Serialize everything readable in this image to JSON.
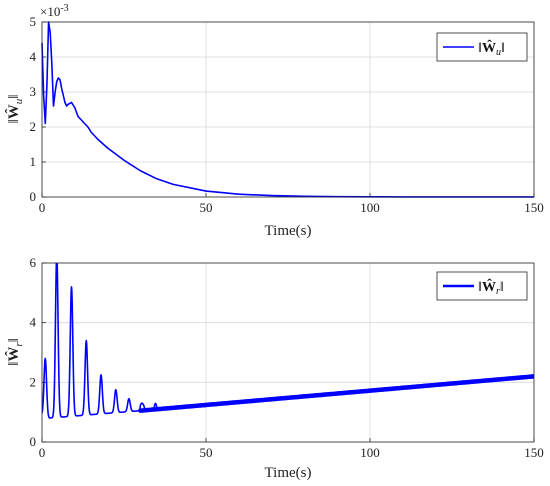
{
  "chart_data": [
    {
      "type": "line",
      "xlabel": "Time(s)",
      "ylabel": "‖Ŵu‖",
      "ylabel_parts": {
        "norm": "‖",
        "sym": "Ŵ",
        "sub": "u"
      },
      "multiplier_label": "×10",
      "multiplier_exp": "-3",
      "xlim": [
        0,
        150
      ],
      "ylim": [
        0,
        5
      ],
      "xticks": [
        "0",
        "50",
        "100",
        "150"
      ],
      "yticks": [
        "0",
        "1",
        "2",
        "3",
        "4",
        "5"
      ],
      "grid": true,
      "legend_position": "top-right",
      "series": [
        {
          "name": "‖Ŵu‖",
          "name_parts": {
            "norm": "‖",
            "sym": "Ŵ",
            "sub": "u"
          },
          "color": "#0000ff",
          "x": [
            0,
            0.5,
            1.0,
            1.5,
            2.0,
            2.5,
            3.0,
            3.5,
            4.0,
            4.5,
            5.0,
            5.5,
            6.0,
            7.0,
            7.5,
            8.0,
            9.0,
            10.0,
            11.0,
            12.0,
            13.0,
            14.0,
            15.0,
            17.0,
            20.0,
            25.0,
            30.0,
            35.0,
            40.0,
            50.0,
            60.0,
            70.0,
            80.0,
            90.0,
            100.0,
            110.0,
            120.0,
            130.0,
            140.0,
            150.0
          ],
          "y": [
            4.4,
            2.9,
            2.1,
            3.2,
            5.0,
            4.7,
            3.8,
            2.6,
            3.0,
            3.3,
            3.4,
            3.35,
            3.1,
            2.7,
            2.6,
            2.65,
            2.7,
            2.55,
            2.3,
            2.2,
            2.1,
            2.0,
            1.85,
            1.65,
            1.4,
            1.05,
            0.75,
            0.52,
            0.36,
            0.17,
            0.08,
            0.04,
            0.02,
            0.01,
            0.005,
            0.003,
            0.002,
            0.001,
            0.001,
            0.001
          ]
        }
      ]
    },
    {
      "type": "line",
      "xlabel": "Time(s)",
      "ylabel": "‖Ŵr‖",
      "ylabel_parts": {
        "norm": "‖",
        "sym": "Ŵ",
        "sub": "r"
      },
      "xlim": [
        0,
        150
      ],
      "ylim": [
        0,
        6
      ],
      "xticks": [
        "0",
        "50",
        "100",
        "150"
      ],
      "yticks": [
        "0",
        "2",
        "4",
        "6"
      ],
      "grid": true,
      "legend_position": "top-right",
      "series": [
        {
          "name": "‖Ŵr‖",
          "name_parts": {
            "norm": "‖",
            "sym": "Ŵ",
            "sub": "r"
          },
          "color": "#0000ff",
          "peaks": [
            {
              "t": 1.0,
              "h": 2.8
            },
            {
              "t": 4.5,
              "h": 6.3
            },
            {
              "t": 9.0,
              "h": 5.2
            },
            {
              "t": 13.5,
              "h": 3.4
            },
            {
              "t": 18.0,
              "h": 2.25
            },
            {
              "t": 22.5,
              "h": 1.75
            },
            {
              "t": 26.5,
              "h": 1.45
            },
            {
              "t": 30.5,
              "h": 1.35
            },
            {
              "t": 34.5,
              "h": 1.25
            }
          ],
          "baseline": {
            "t_start": 2.0,
            "y_start": 0.8,
            "t_slope_start": 30.0,
            "y_slope_start": 1.05,
            "t_end": 150.0,
            "y_end": 2.2
          },
          "band_width": 0.1
        }
      ]
    }
  ]
}
